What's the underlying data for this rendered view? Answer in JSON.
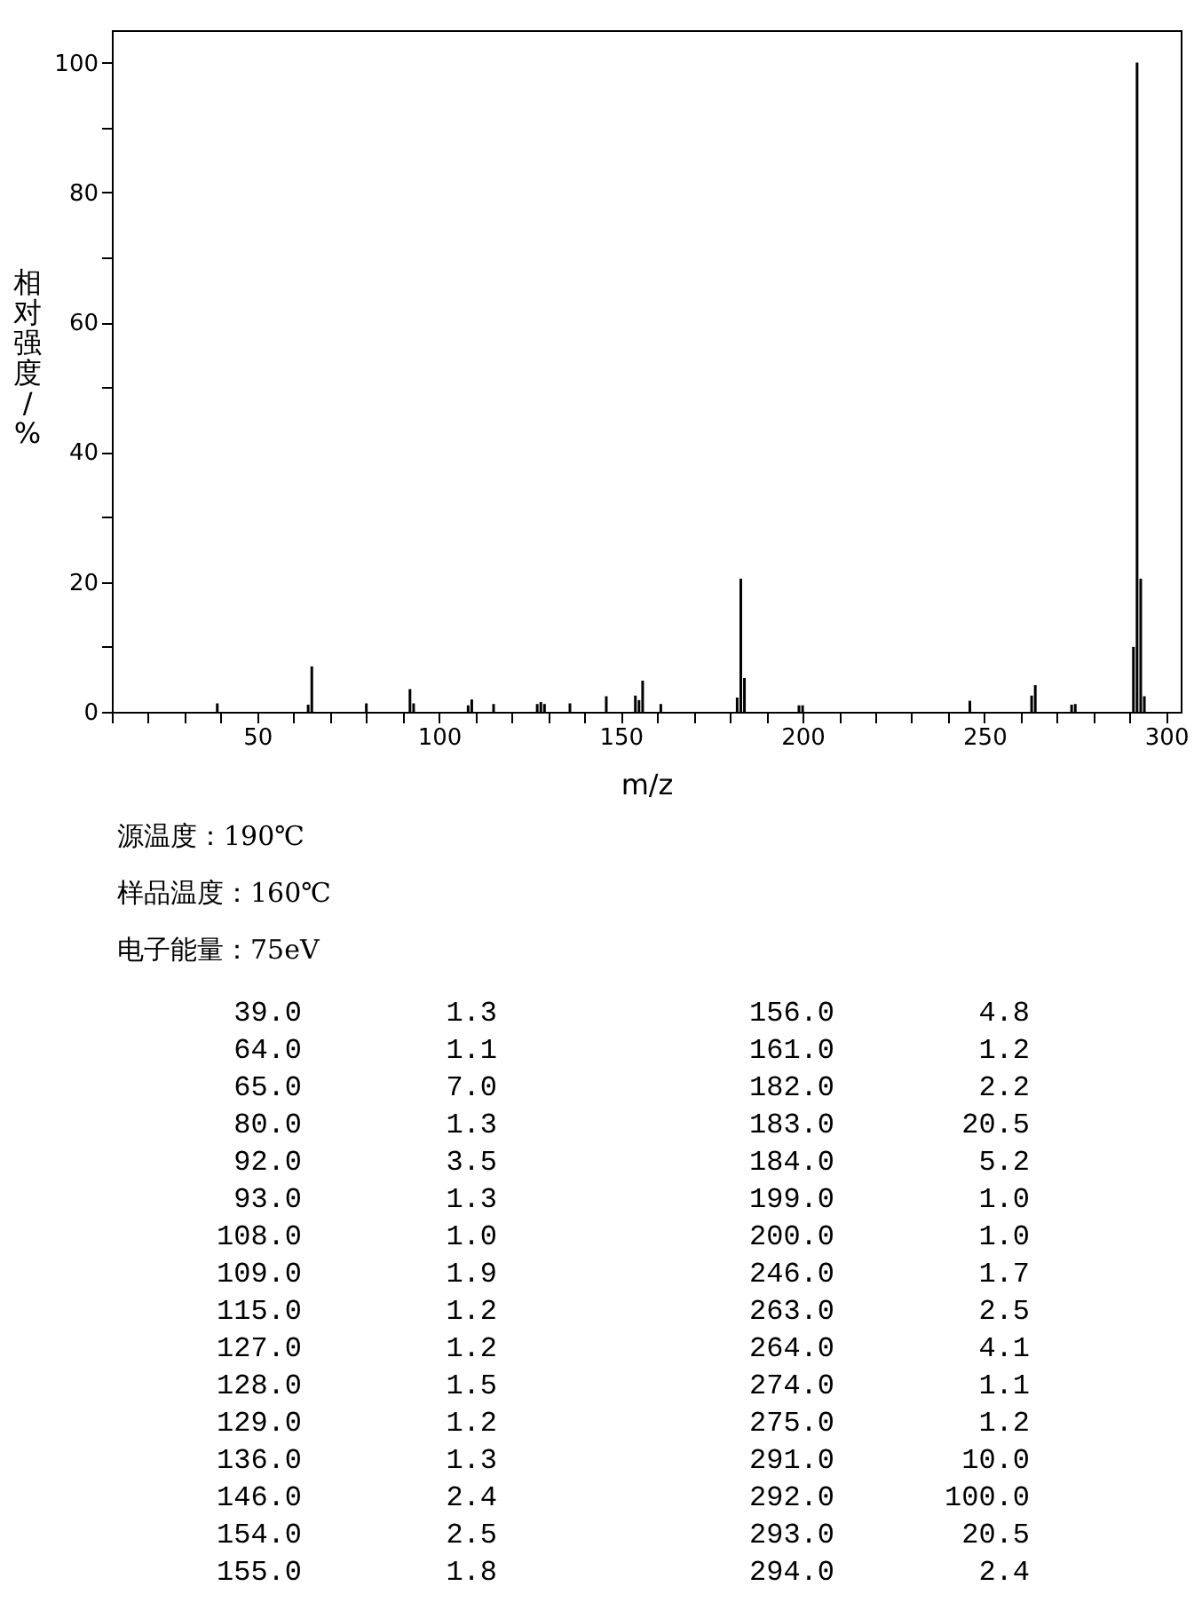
{
  "chart_data": [
    {
      "type": "bar",
      "xlabel": "m/z",
      "ylabel": "相对强度/%",
      "annotations": [
        "源温度：190℃",
        "样品温度：160℃",
        "电子能量：75eV"
      ],
      "x": [
        39,
        64,
        65,
        80,
        92,
        93,
        108,
        109,
        115,
        127,
        128,
        129,
        136,
        146,
        154,
        155,
        156,
        161,
        182,
        183,
        184,
        199,
        200,
        246,
        263,
        264,
        274,
        275,
        291,
        292,
        293,
        294
      ],
      "values": [
        1.3,
        1.1,
        7.0,
        1.3,
        3.5,
        1.3,
        1.0,
        1.9,
        1.2,
        1.2,
        1.5,
        1.2,
        1.3,
        2.4,
        2.5,
        1.8,
        4.8,
        1.2,
        2.2,
        20.5,
        5.2,
        1.0,
        1.0,
        1.7,
        2.5,
        4.1,
        1.1,
        1.2,
        10.0,
        100.0,
        20.5,
        2.4
      ],
      "color": "#000000",
      "xlim": [
        10,
        304
      ],
      "xticks": [
        {
          "value": 10,
          "label": null
        },
        {
          "value": 20,
          "label": null
        },
        {
          "value": 30,
          "label": null
        },
        {
          "value": 40,
          "label": null
        },
        50,
        {
          "value": 60,
          "label": null
        },
        {
          "value": 70,
          "label": null
        },
        {
          "value": 80,
          "label": null
        },
        {
          "value": 90,
          "label": null
        },
        100,
        {
          "value": 110,
          "label": null
        },
        {
          "value": 120,
          "label": null
        },
        {
          "value": 130,
          "label": null
        },
        {
          "value": 140,
          "label": null
        },
        150,
        {
          "value": 160,
          "label": null
        },
        {
          "value": 170,
          "label": null
        },
        {
          "value": 180,
          "label": null
        },
        {
          "value": 190,
          "label": null
        },
        200,
        {
          "value": 210,
          "label": null
        },
        {
          "value": 220,
          "label": null
        },
        {
          "value": 230,
          "label": null
        },
        {
          "value": 240,
          "label": null
        },
        250,
        {
          "value": 260,
          "label": null
        },
        {
          "value": 270,
          "label": null
        },
        {
          "value": 280,
          "label": null
        },
        {
          "value": 290,
          "label": null
        },
        300
      ],
      "ylim": [
        0,
        105
      ],
      "yticks": [
        0,
        {
          "value": 10,
          "label": null
        },
        20,
        {
          "value": 30,
          "label": null
        },
        40,
        {
          "value": 50,
          "label": null
        },
        60,
        {
          "value": 70,
          "label": null
        },
        80,
        {
          "value": 90,
          "label": null
        },
        100
      ],
      "grid": false
    },
    {
      "type": "other",
      "annotations": [
        "39.0",
        "1.3",
        "156.0",
        "4.8",
        "64.0",
        "1.1",
        "161.0",
        "1.2",
        "65.0",
        "7.0",
        "182.0",
        "2.2",
        "80.0",
        "1.3",
        "183.0",
        "20.5",
        "92.0",
        "3.5",
        "184.0",
        "5.2",
        "93.0",
        "1.3",
        "199.0",
        "1.0",
        "108.0",
        "1.0",
        "200.0",
        "1.0",
        "109.0",
        "1.9",
        "246.0",
        "1.7",
        "115.0",
        "1.2",
        "263.0",
        "2.5",
        "127.0",
        "1.2",
        "264.0",
        "4.1",
        "128.0",
        "1.5",
        "274.0",
        "1.1",
        "129.0",
        "1.2",
        "275.0",
        "1.2",
        "136.0",
        "1.3",
        "291.0",
        "10.0",
        "146.0",
        "2.4",
        "292.0",
        "100.0",
        "154.0",
        "2.5",
        "293.0",
        "20.5",
        "155.0",
        "1.8",
        "294.0",
        "2.4"
      ]
    }
  ]
}
